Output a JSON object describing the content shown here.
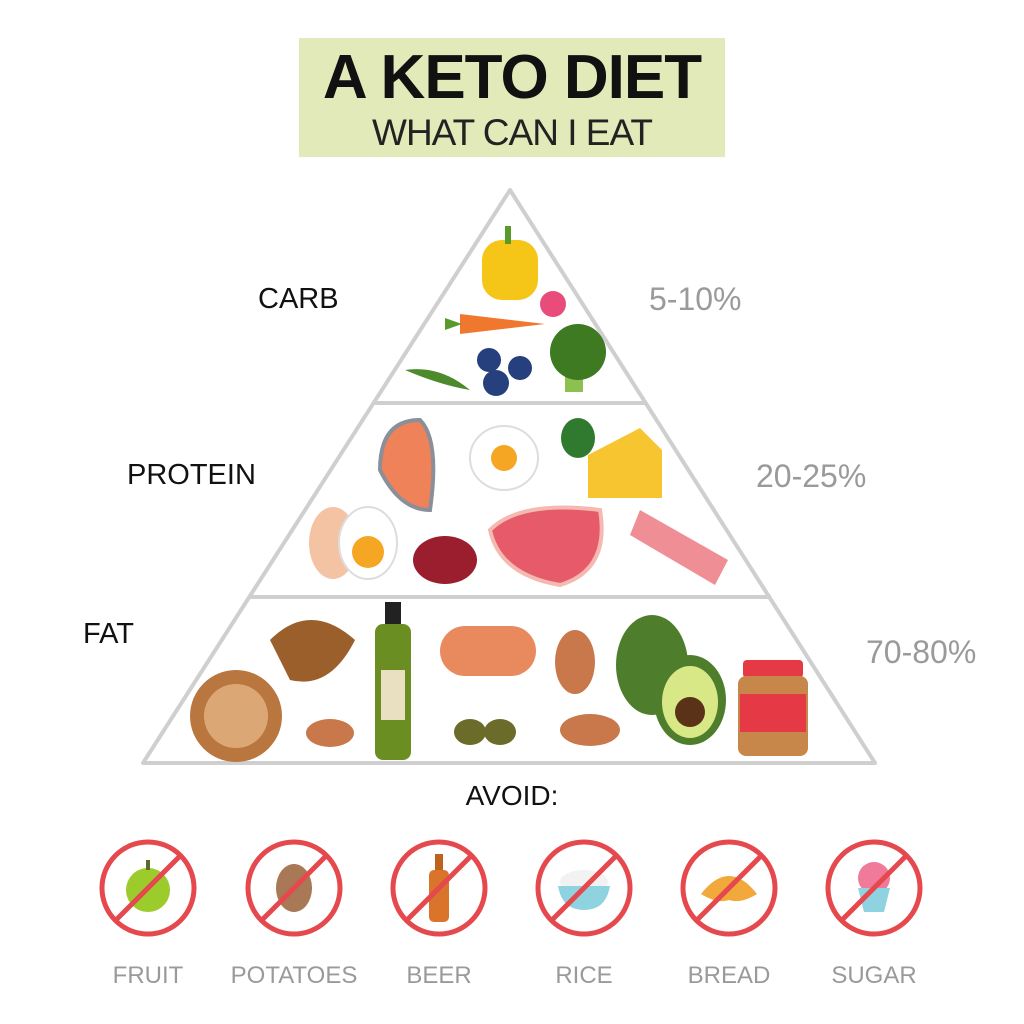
{
  "header": {
    "title": "A KETO DIET",
    "subtitle": "WHAT CAN I EAT",
    "background_color": "#e3eab9"
  },
  "pyramid": {
    "tiers": [
      {
        "label": "CARB",
        "percent": "5-10%",
        "foods": [
          "bell-pepper-icon",
          "raspberry-icon",
          "carrot-icon",
          "arugula-icon",
          "blueberries-icon",
          "broccoli-icon"
        ]
      },
      {
        "label": "PROTEIN",
        "percent": "20-25%",
        "foods": [
          "salmon-icon",
          "fried-egg-icon",
          "spinach-icon",
          "cheese-icon",
          "boiled-egg-icon",
          "liver-icon",
          "steak-icon",
          "bacon-icon"
        ]
      },
      {
        "label": "FAT",
        "percent": "70-80%",
        "foods": [
          "walnut-icon",
          "olive-oil-icon",
          "sausage-icon",
          "almond-icon",
          "olives-icon",
          "avocado-icon",
          "peanut-butter-icon"
        ]
      }
    ],
    "line_color": "#cfcfcf"
  },
  "avoid": {
    "title": "AVOID:",
    "ban_color": "#e5484d",
    "items": [
      {
        "label": "FRUIT",
        "icon": "apple-icon"
      },
      {
        "label": "POTATOES",
        "icon": "potato-icon"
      },
      {
        "label": "BEER",
        "icon": "beer-bottle-icon"
      },
      {
        "label": "RICE",
        "icon": "rice-bowl-icon"
      },
      {
        "label": "BREAD",
        "icon": "croissant-icon"
      },
      {
        "label": "SUGAR",
        "icon": "cupcake-icon"
      }
    ]
  }
}
